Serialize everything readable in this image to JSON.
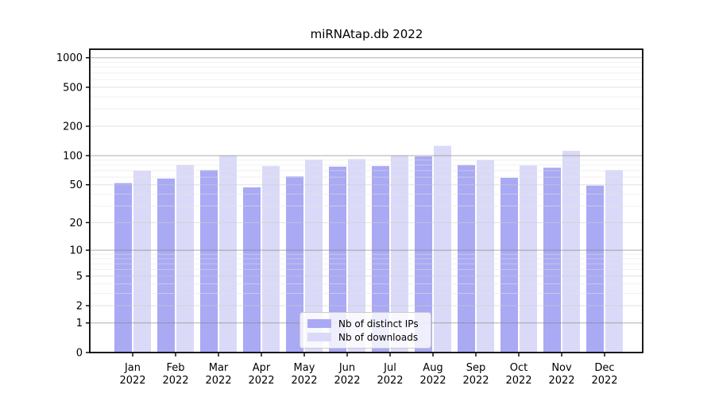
{
  "title": "miRNAtap.db 2022",
  "chart_data": {
    "type": "bar",
    "title": "miRNAtap.db 2022",
    "categories": [
      "Jan 2022",
      "Feb 2022",
      "Mar 2022",
      "Apr 2022",
      "May 2022",
      "Jun 2022",
      "Jul 2022",
      "Aug 2022",
      "Sep 2022",
      "Oct 2022",
      "Nov 2022",
      "Dec 2022"
    ],
    "series": [
      {
        "name": "Nb of distinct IPs",
        "color": "#a9a9f4",
        "values": [
          52,
          58,
          71,
          47,
          61,
          77,
          78,
          98,
          80,
          59,
          75,
          49
        ]
      },
      {
        "name": "Nb of downloads",
        "color": "#dadaf8",
        "values": [
          70,
          80,
          100,
          78,
          91,
          92,
          100,
          126,
          90,
          79,
          112,
          71
        ]
      }
    ],
    "xlabel": "",
    "ylabel": "",
    "yscale": "log1p",
    "y_ticks": [
      0,
      1,
      2,
      5,
      10,
      20,
      50,
      100,
      200,
      500,
      1000
    ],
    "ylim": [
      0,
      1220
    ],
    "grid": "both",
    "legend_position": "lower center"
  },
  "colors": {
    "bar_ips": "#a9a9f4",
    "bar_downloads": "#dadaf8",
    "grid_major": "rgba(130,130,130,0.65)",
    "grid_mid": "rgba(205,205,205,0.6)",
    "grid_minor": "rgba(228,228,228,0.55)",
    "frame": "#000000",
    "text": "#000000"
  }
}
